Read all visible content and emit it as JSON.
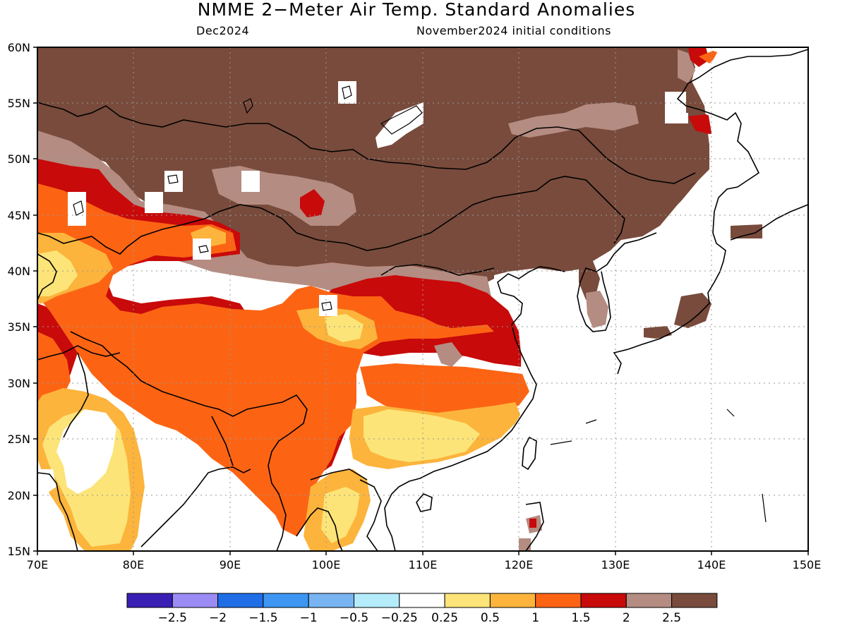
{
  "title": "NMME 2−Meter Air Temp. Standard Anomalies",
  "target_month": "Dec2024",
  "initial_conditions": "November2024 initial conditions",
  "lat_labels": [
    "60N",
    "55N",
    "50N",
    "45N",
    "40N",
    "35N",
    "30N",
    "25N",
    "20N",
    "15N"
  ],
  "lon_labels": [
    "70E",
    "80E",
    "90E",
    "100E",
    "110E",
    "120E",
    "130E",
    "140E",
    "150E"
  ],
  "colorbar": {
    "colors": [
      "#3a1fb4",
      "#9a8cf4",
      "#1f6ee6",
      "#3c96f2",
      "#78b4f2",
      "#b4ecfc",
      "#ffffff",
      "#fce478",
      "#fcb43c",
      "#fc6414",
      "#c80a0a",
      "#b48c82",
      "#784b3c"
    ],
    "labels": [
      "−2.5",
      "−2",
      "−1.5",
      "−1",
      "−0.5",
      "−0.25",
      "0.25",
      "0.5",
      "1",
      "1.5",
      "2",
      "2.5"
    ]
  }
}
